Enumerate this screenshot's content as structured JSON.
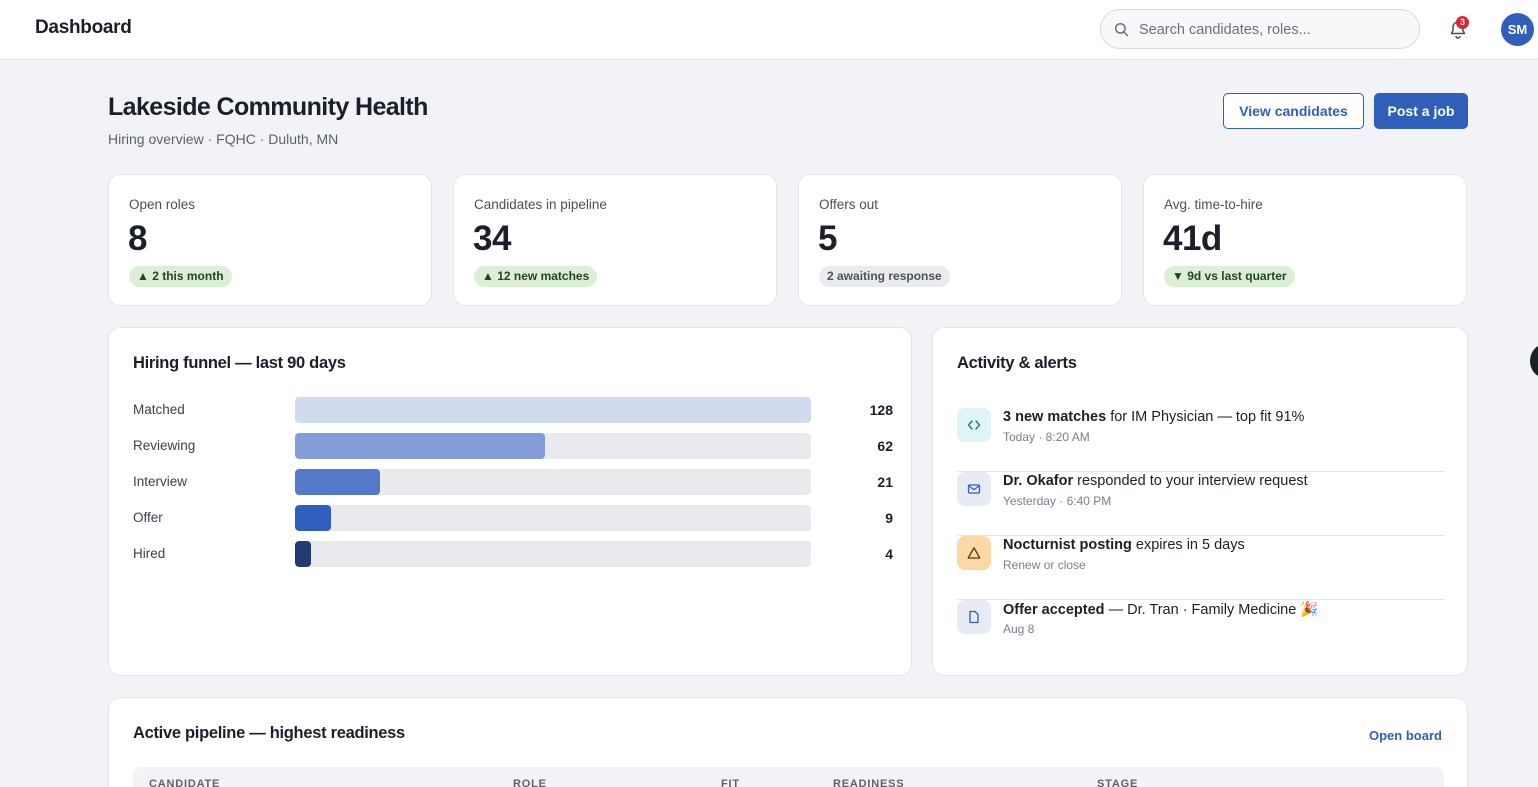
{
  "topbar": {
    "title": "Dashboard",
    "search_placeholder": "Search candidates, roles...",
    "notification_count": "3",
    "avatar_initials": "SM"
  },
  "header": {
    "org_name": "Lakeside Community Health",
    "subtitle": "Hiring overview · FQHC · Duluth, MN",
    "view_candidates_label": "View candidates",
    "post_job_label": "Post a job"
  },
  "stats": [
    {
      "label": "Open roles",
      "value": "8",
      "pill": "▲ 2 this month",
      "tone": "green"
    },
    {
      "label": "Candidates in pipeline",
      "value": "34",
      "pill": "▲ 12 new matches",
      "tone": "green"
    },
    {
      "label": "Offers out",
      "value": "5",
      "pill": "2 awaiting response",
      "tone": "gray"
    },
    {
      "label": "Avg. time-to-hire",
      "value": "41d",
      "pill": "▼ 9d vs last quarter",
      "tone": "green"
    }
  ],
  "funnel": {
    "title": "Hiring funnel — last 90 days",
    "max": 128,
    "stages": [
      {
        "label": "Matched",
        "value": "128",
        "count": 128,
        "color": "#d1dbef"
      },
      {
        "label": "Reviewing",
        "value": "62",
        "count": 62,
        "color": "#839dd7"
      },
      {
        "label": "Interview",
        "value": "21",
        "count": 21,
        "color": "#5479c8"
      },
      {
        "label": "Offer",
        "value": "9",
        "count": 9,
        "color": "#2f5fbe"
      },
      {
        "label": "Hired",
        "value": "4",
        "count": 4,
        "color": "#1f3b72"
      }
    ]
  },
  "activity": {
    "title": "Activity & alerts",
    "items": [
      {
        "bold": "3 new matches",
        "rest": " for IM Physician — top fit 91%",
        "meta": "Today · 8:20 AM",
        "icon": "code-icon",
        "icon_bg": "#dff4f5",
        "icon_color": "#1d7d86"
      },
      {
        "bold": "Dr. Okafor",
        "rest": " responded to your interview request",
        "meta": "Yesterday · 6:40 PM",
        "icon": "mail-icon",
        "icon_bg": "#e6ebf6",
        "icon_color": "#2f5fb8"
      },
      {
        "bold": "Nocturnist posting",
        "rest": " expires in 5 days",
        "meta": "Renew or close",
        "icon": "warning-icon",
        "icon_bg": "#fbd9a6",
        "icon_color": "#5a3a0a"
      },
      {
        "bold": "Offer accepted",
        "rest": " — Dr. Tran · Family Medicine 🎉",
        "meta": "Aug 8",
        "icon": "document-icon",
        "icon_bg": "#e6ebf6",
        "icon_color": "#2f5fb8"
      }
    ]
  },
  "pipeline": {
    "title": "Active pipeline — highest readiness",
    "open_board_label": "Open board",
    "columns": [
      "CANDIDATE",
      "ROLE",
      "FIT",
      "READINESS",
      "STAGE"
    ]
  },
  "colors": {
    "accent": "#2f5fb8",
    "page_bg": "#f2f3f6",
    "badge_red": "#e0242e"
  }
}
